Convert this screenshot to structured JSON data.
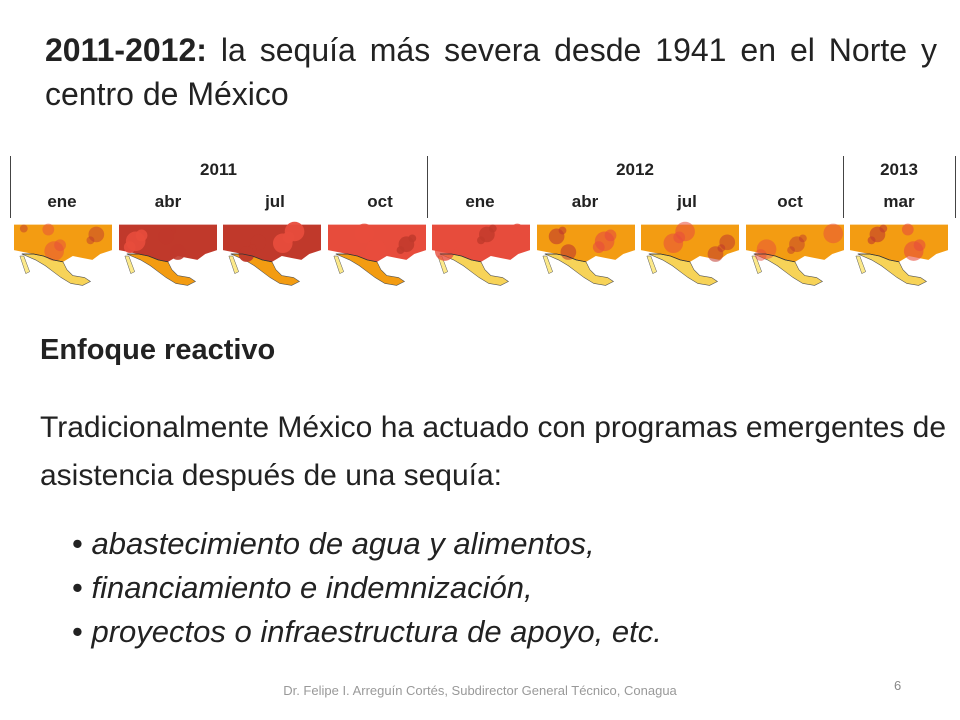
{
  "title": {
    "bold": "2011-2012:",
    "rest": " la sequía más severa desde 1941 en el Norte y centro de México"
  },
  "timeline": {
    "years": [
      "2011",
      "2012",
      "2013"
    ],
    "months": [
      "ene",
      "abr",
      "jul",
      "oct",
      "ene",
      "abr",
      "jul",
      "oct",
      "mar"
    ]
  },
  "maps": {
    "count": 9,
    "palette": [
      "#c0392b",
      "#e74c3c",
      "#f39c12",
      "#f7d358",
      "#fce98a"
    ]
  },
  "heading": "Enfoque reactivo",
  "paragraph": "Tradicionalmente México ha actuado con programas emergentes de asistencia después de una sequía:",
  "bullets": [
    "abastecimiento de agua y alimentos,",
    "financiamiento e indemnización,",
    "proyectos o infraestructura de apoyo, etc."
  ],
  "footer": "Dr. Felipe I. Arreguín Cortés, Subdirector General Técnico, Conagua",
  "page_number": "6"
}
